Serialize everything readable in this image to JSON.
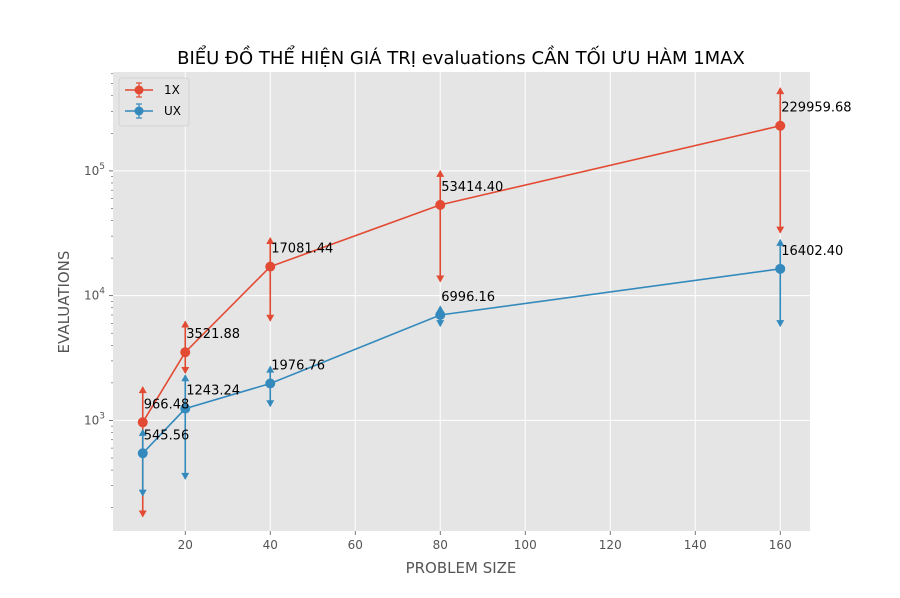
{
  "chart_data": {
    "type": "line",
    "title": "BIỂU ĐỒ THỂ HIỆN GIÁ TRỊ evaluations CẦN TỐI ƯU HÀM 1MAX",
    "xlabel": "PROBLEM SIZE",
    "ylabel": "EVALUATIONS",
    "x": [
      10,
      20,
      40,
      80,
      160
    ],
    "xlim": [
      3,
      167
    ],
    "xticks": [
      20,
      40,
      60,
      80,
      100,
      120,
      140,
      160
    ],
    "yscale": "log",
    "ylim": [
      130,
      620000
    ],
    "yticks": [
      {
        "value": 1000,
        "label": "10^3"
      },
      {
        "value": 10000,
        "label": "10^4"
      },
      {
        "value": 100000,
        "label": "10^5"
      }
    ],
    "grid": true,
    "legend": "top-left",
    "series": [
      {
        "name": "1X",
        "color": "#E24A33",
        "values": [
          966.48,
          3521.88,
          17081.44,
          53414.4,
          229959.68
        ],
        "labels": [
          "966.48",
          "3521.88",
          "17081.44",
          "53414.40",
          "229959.68"
        ],
        "err_low": [
          170,
          2400,
          6300,
          13000,
          32000
        ],
        "err_high": [
          1850,
          6200,
          29000,
          100000,
          460000
        ]
      },
      {
        "name": "UX",
        "color": "#348ABD",
        "values": [
          545.56,
          1243.24,
          1976.76,
          6996.16,
          16402.4
        ],
        "labels": [
          "545.56",
          "1243.24",
          "1976.76",
          "6996.16",
          "16402.40"
        ],
        "err_low": [
          250,
          340,
          1300,
          5700,
          5700
        ],
        "err_high": [
          840,
          2300,
          2700,
          8200,
          28000
        ]
      }
    ]
  }
}
